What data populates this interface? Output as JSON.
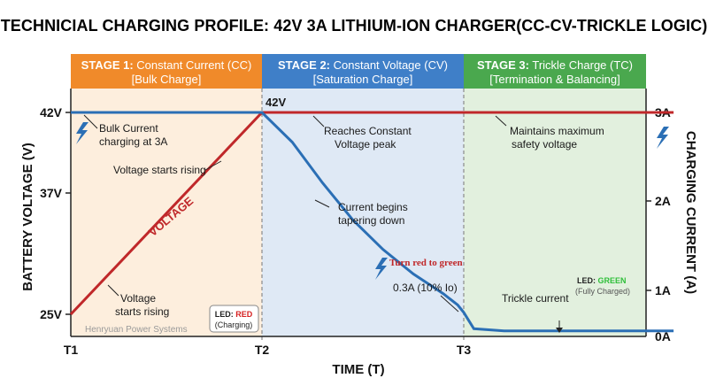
{
  "title": "TECHNICIAL CHARGING PROFILE: 42V 3A LITHIUM-ION CHARGER(CC-CV-TRICKLE LOGIC)",
  "stages": [
    {
      "title_bold": "STAGE 1:",
      "title_rest": " Constant Current (CC)",
      "sub": "[Bulk Charge]",
      "color": "#f08a2a",
      "bg": "#fdeedd"
    },
    {
      "title_bold": "STAGE 2:",
      "title_rest": " Constant Voltage (CV)",
      "sub": "[Saturation Charge]",
      "color": "#3f7fc8",
      "bg": "#dfe9f5"
    },
    {
      "title_bold": "STAGE 3:",
      "title_rest": " Trickle Charge (TC)",
      "sub": "[Termination & Balancing]",
      "color": "#4aa84e",
      "bg": "#e2f0de"
    }
  ],
  "annotations": {
    "bulk_current": [
      "Bulk Current",
      "charging at 3A"
    ],
    "voltage_rising_top": "Voltage starts rising",
    "voltage_label": "VOLTAGE",
    "voltage_rising_bottom": [
      "Voltage",
      "starts rising"
    ],
    "led_red": [
      "LED: ",
      "RED",
      "(Charging)"
    ],
    "watermark": "Henryuan Power Systems",
    "peak_label": "42V",
    "cv_peak": [
      "Reaches Constant",
      "Voltage peak"
    ],
    "tapering": [
      "Current begins",
      "tapering down"
    ],
    "turn_red": "Turn red to green",
    "point_03": "0.3A (10% Io)",
    "safety": [
      "Maintains maximum",
      "safety voltage"
    ],
    "led_green": [
      "LED: ",
      "GREEN",
      "(Fully Charged)"
    ],
    "trickle": "Trickle current"
  },
  "chart_data": {
    "type": "line",
    "title": "TECHNICIAL CHARGING PROFILE: 42V 3A LITHIUM-ION CHARGER(CC-CV-TRICKLE LOGIC)",
    "xlabel": "TIME (T)",
    "ylabel_left": "BATTERY VOLTAGE (V)",
    "ylabel_right": "CHARGING CURRENT (A)",
    "x_ticks": [
      "T1",
      "T2",
      "T3"
    ],
    "y_left_ticks": [
      "42V",
      "37V",
      "25V"
    ],
    "y_right_ticks": [
      "3A",
      "2A",
      "1A",
      "0A"
    ],
    "y_left_range": [
      25,
      42
    ],
    "y_right_range": [
      0,
      3
    ],
    "series": [
      {
        "name": "VOLTAGE",
        "axis": "left",
        "color": "#c0282a",
        "points": [
          {
            "t": 0,
            "v": 25
          },
          {
            "t": 1,
            "v": 42
          },
          {
            "t": 2,
            "v": 42
          },
          {
            "t": 3.04,
            "v": 42
          }
        ]
      },
      {
        "name": "",
        "axis": "right",
        "color": "#2b6fb5",
        "points": [
          {
            "t": 0,
            "a": 3
          },
          {
            "t": 1,
            "a": 3
          },
          {
            "t": 1.15,
            "a": 2.6
          },
          {
            "t": 1.3,
            "a": 2.05
          },
          {
            "t": 1.45,
            "a": 1.55
          },
          {
            "t": 1.6,
            "a": 1.15
          },
          {
            "t": 1.75,
            "a": 0.82
          },
          {
            "t": 1.9,
            "a": 0.55
          },
          {
            "t": 1.97,
            "a": 0.4
          },
          {
            "t": 2,
            "a": 0.3
          },
          {
            "t": 2.05,
            "a": 0.08
          },
          {
            "t": 2.2,
            "a": 0.05
          },
          {
            "t": 3.04,
            "a": 0.05
          }
        ]
      }
    ],
    "grid": false
  },
  "colors": {
    "voltage": "#c0282a",
    "current": "#2b6fb5",
    "led_red": "#d62020",
    "led_green": "#2fbf3a"
  },
  "icons": [
    "lightning-icon"
  ]
}
